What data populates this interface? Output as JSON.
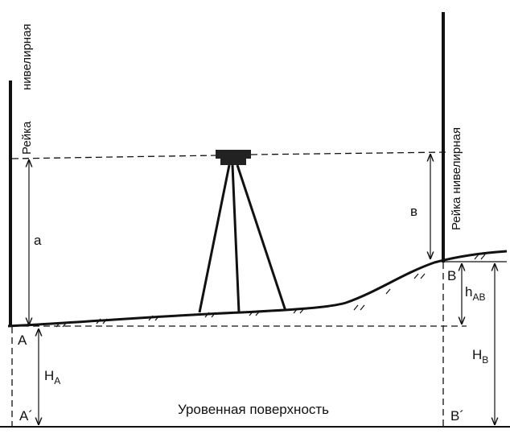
{
  "staffs": {
    "left": {
      "lines": [
        "Рейка",
        "нивелирная"
      ]
    },
    "right": {
      "label": "Рейка нивелирная"
    }
  },
  "readings": {
    "a": "а",
    "b": "в"
  },
  "points": {
    "A": "A",
    "B": "B",
    "A_prime": "A´",
    "B_prime": "B´"
  },
  "heights": {
    "H_A": {
      "symbol": "H",
      "subscript": "A"
    },
    "h_AB": {
      "symbol": "h",
      "subscript": "AB"
    },
    "H_B": {
      "symbol": "H",
      "subscript": "B"
    }
  },
  "datum_label": "Уровенная поверхность"
}
